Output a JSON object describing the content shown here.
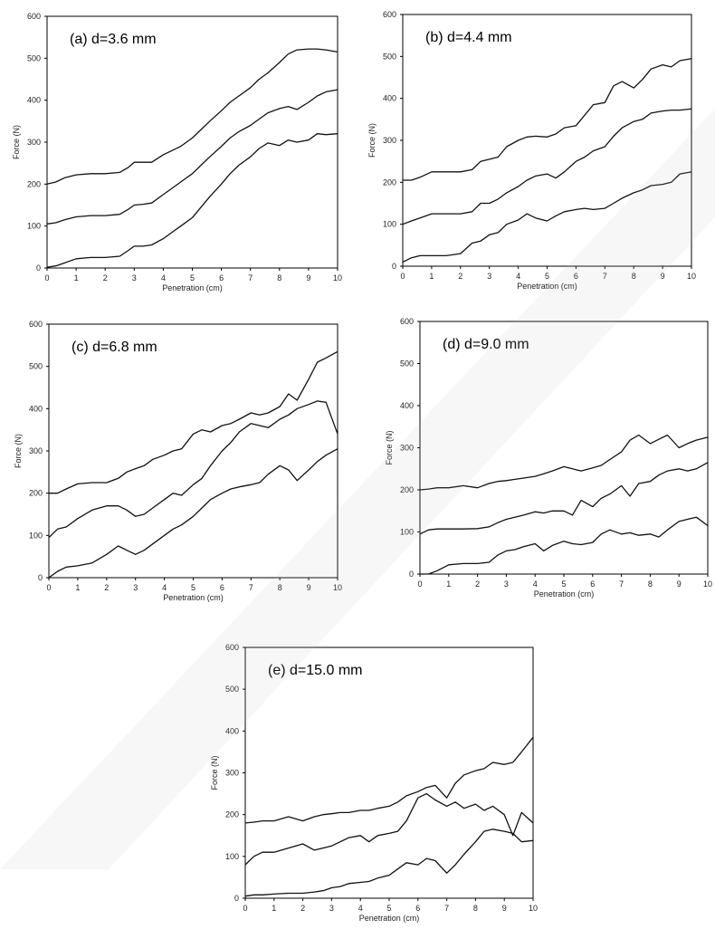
{
  "chart_data": [
    {
      "type": "line",
      "title": "(a) d=3.6 mm",
      "xlabel": "Penetration (cm)",
      "ylabel": "Force (N)",
      "xlim": [
        0,
        10
      ],
      "ylim": [
        0,
        600
      ],
      "xticks": [
        "0",
        "1",
        "2",
        "3",
        "4",
        "5",
        "6",
        "7",
        "8",
        "9",
        "10"
      ],
      "yticks": [
        "0",
        "100",
        "200",
        "300",
        "400",
        "500",
        "600"
      ],
      "series": [
        {
          "x": [
            0,
            0.3,
            0.6,
            1,
            1.5,
            2,
            2.5,
            2.8,
            3,
            3.3,
            3.6,
            4,
            4.3,
            4.6,
            5,
            5.3,
            5.6,
            6,
            6.3,
            6.6,
            7,
            7.3,
            7.6,
            8,
            8.3,
            8.6,
            9,
            9.3,
            9.6,
            10
          ],
          "values": [
            200,
            205,
            215,
            222,
            225,
            225,
            228,
            240,
            252,
            252,
            252,
            270,
            280,
            290,
            310,
            330,
            350,
            375,
            395,
            410,
            430,
            450,
            465,
            490,
            510,
            520,
            522,
            522,
            520,
            515
          ]
        },
        {
          "x": [
            0,
            0.3,
            0.6,
            1,
            1.5,
            2,
            2.5,
            2.8,
            3,
            3.3,
            3.6,
            4,
            4.3,
            4.6,
            5,
            5.3,
            5.6,
            6,
            6.3,
            6.6,
            7,
            7.3,
            7.6,
            8,
            8.3,
            8.6,
            9,
            9.3,
            9.6,
            10
          ],
          "values": [
            105,
            108,
            115,
            122,
            125,
            125,
            128,
            140,
            150,
            152,
            155,
            175,
            190,
            205,
            225,
            245,
            265,
            290,
            310,
            325,
            340,
            355,
            370,
            380,
            385,
            378,
            395,
            410,
            420,
            425
          ]
        },
        {
          "x": [
            0,
            0.3,
            0.6,
            1,
            1.5,
            2,
            2.5,
            2.8,
            3,
            3.3,
            3.6,
            4,
            4.3,
            4.6,
            5,
            5.3,
            5.6,
            6,
            6.3,
            6.6,
            7,
            7.3,
            7.6,
            8,
            8.3,
            8.6,
            9,
            9.3,
            9.6,
            10
          ],
          "values": [
            2,
            5,
            12,
            22,
            25,
            25,
            28,
            42,
            52,
            52,
            55,
            70,
            85,
            100,
            120,
            145,
            170,
            200,
            225,
            245,
            265,
            285,
            298,
            292,
            305,
            300,
            305,
            320,
            318,
            320
          ]
        }
      ]
    },
    {
      "type": "line",
      "title": "(b) d=4.4 mm",
      "xlabel": "Penetration (cm)",
      "ylabel": "Force (N)",
      "xlim": [
        0,
        10
      ],
      "ylim": [
        0,
        600
      ],
      "xticks": [
        "0",
        "1",
        "2",
        "3",
        "4",
        "5",
        "6",
        "7",
        "8",
        "9",
        "10"
      ],
      "yticks": [
        "0",
        "100",
        "200",
        "300",
        "400",
        "500",
        "600"
      ],
      "series": [
        {
          "x": [
            0,
            0.3,
            0.6,
            1,
            1.5,
            2,
            2.4,
            2.7,
            3,
            3.3,
            3.6,
            4,
            4.3,
            4.6,
            5,
            5.3,
            5.6,
            6,
            6.3,
            6.6,
            7,
            7.3,
            7.6,
            8,
            8.3,
            8.6,
            9,
            9.3,
            9.6,
            10
          ],
          "values": [
            205,
            205,
            212,
            225,
            225,
            225,
            230,
            250,
            255,
            260,
            285,
            300,
            308,
            310,
            308,
            315,
            330,
            335,
            360,
            385,
            390,
            430,
            440,
            425,
            445,
            470,
            480,
            475,
            490,
            495
          ]
        },
        {
          "x": [
            0,
            0.3,
            0.6,
            1,
            1.5,
            2,
            2.4,
            2.7,
            3,
            3.3,
            3.6,
            4,
            4.3,
            4.6,
            5,
            5.3,
            5.6,
            6,
            6.3,
            6.6,
            7,
            7.3,
            7.6,
            8,
            8.3,
            8.6,
            9,
            9.3,
            9.6,
            10
          ],
          "values": [
            100,
            108,
            115,
            125,
            125,
            125,
            130,
            150,
            150,
            160,
            175,
            190,
            205,
            215,
            220,
            210,
            225,
            250,
            260,
            275,
            285,
            310,
            330,
            345,
            350,
            365,
            370,
            372,
            372,
            375
          ]
        },
        {
          "x": [
            0,
            0.3,
            0.6,
            1,
            1.5,
            2,
            2.4,
            2.7,
            3,
            3.3,
            3.6,
            4,
            4.3,
            4.6,
            5,
            5.3,
            5.6,
            6,
            6.3,
            6.6,
            7,
            7.3,
            7.6,
            8,
            8.3,
            8.6,
            9,
            9.3,
            9.6,
            10
          ],
          "values": [
            10,
            20,
            25,
            25,
            25,
            30,
            55,
            60,
            75,
            80,
            100,
            110,
            125,
            115,
            108,
            120,
            130,
            135,
            138,
            135,
            138,
            150,
            162,
            175,
            182,
            192,
            195,
            200,
            220,
            225
          ]
        }
      ]
    },
    {
      "type": "line",
      "title": "(c) d=6.8 mm",
      "xlabel": "Penetration (cm)",
      "ylabel": "Force (N)",
      "xlim": [
        0,
        10
      ],
      "ylim": [
        0,
        600
      ],
      "xticks": [
        "0",
        "1",
        "2",
        "3",
        "4",
        "5",
        "6",
        "7",
        "8",
        "9",
        "10"
      ],
      "yticks": [
        "0",
        "100",
        "200",
        "300",
        "400",
        "500",
        "600"
      ],
      "series": [
        {
          "x": [
            0,
            0.3,
            0.6,
            1,
            1.5,
            2,
            2.4,
            2.7,
            3,
            3.3,
            3.6,
            4,
            4.3,
            4.6,
            5,
            5.3,
            5.6,
            6,
            6.3,
            6.6,
            7,
            7.3,
            7.6,
            8,
            8.3,
            8.6,
            9,
            9.3,
            9.6,
            10
          ],
          "values": [
            200,
            200,
            210,
            222,
            225,
            225,
            235,
            250,
            258,
            265,
            280,
            290,
            300,
            305,
            340,
            350,
            345,
            360,
            365,
            375,
            390,
            385,
            390,
            405,
            435,
            420,
            470,
            510,
            520,
            535
          ]
        },
        {
          "x": [
            0,
            0.3,
            0.6,
            1,
            1.5,
            2,
            2.4,
            2.7,
            3,
            3.3,
            3.6,
            4,
            4.3,
            4.6,
            5,
            5.3,
            5.6,
            6,
            6.3,
            6.6,
            7,
            7.3,
            7.6,
            8,
            8.3,
            8.6,
            9,
            9.3,
            9.6,
            10
          ],
          "values": [
            95,
            115,
            120,
            140,
            160,
            170,
            170,
            160,
            145,
            150,
            165,
            185,
            200,
            195,
            220,
            235,
            265,
            300,
            320,
            345,
            365,
            360,
            355,
            375,
            385,
            400,
            410,
            418,
            415,
            340
          ]
        },
        {
          "x": [
            0,
            0.3,
            0.6,
            1,
            1.5,
            2,
            2.4,
            2.7,
            3,
            3.3,
            3.6,
            4,
            4.3,
            4.6,
            5,
            5.3,
            5.6,
            6,
            6.3,
            6.6,
            7,
            7.3,
            7.6,
            8,
            8.3,
            8.6,
            9,
            9.3,
            9.6,
            10
          ],
          "values": [
            0,
            15,
            25,
            28,
            35,
            55,
            75,
            65,
            55,
            65,
            80,
            100,
            115,
            125,
            145,
            165,
            185,
            200,
            210,
            215,
            220,
            225,
            245,
            265,
            255,
            230,
            255,
            275,
            290,
            305
          ]
        }
      ]
    },
    {
      "type": "line",
      "title": "(d) d=9.0 mm",
      "xlabel": "Penetration (cm)",
      "ylabel": "Force (N)",
      "xlim": [
        0,
        10
      ],
      "ylim": [
        0,
        600
      ],
      "xticks": [
        "0",
        "1",
        "2",
        "3",
        "4",
        "5",
        "6",
        "7",
        "8",
        "9",
        "10"
      ],
      "yticks": [
        "0",
        "100",
        "200",
        "300",
        "400",
        "500",
        "600"
      ],
      "series": [
        {
          "x": [
            0,
            0.3,
            0.6,
            1,
            1.5,
            2,
            2.4,
            2.7,
            3,
            3.3,
            3.6,
            4,
            4.3,
            4.6,
            5,
            5.3,
            5.6,
            6,
            6.3,
            6.6,
            7,
            7.3,
            7.6,
            8,
            8.3,
            8.6,
            9,
            9.3,
            9.6,
            10
          ],
          "values": [
            200,
            202,
            205,
            205,
            210,
            205,
            215,
            220,
            222,
            225,
            228,
            232,
            238,
            245,
            255,
            250,
            245,
            252,
            258,
            272,
            290,
            318,
            330,
            310,
            320,
            330,
            300,
            310,
            318,
            325
          ]
        },
        {
          "x": [
            0,
            0.3,
            0.6,
            1,
            1.5,
            2,
            2.4,
            2.7,
            3,
            3.3,
            3.6,
            4,
            4.3,
            4.6,
            5,
            5.3,
            5.6,
            6,
            6.3,
            6.6,
            7,
            7.3,
            7.6,
            8,
            8.3,
            8.6,
            9,
            9.3,
            9.6,
            10
          ],
          "values": [
            95,
            105,
            107,
            107,
            107,
            108,
            112,
            122,
            130,
            135,
            140,
            148,
            145,
            150,
            150,
            140,
            175,
            160,
            180,
            190,
            210,
            185,
            215,
            220,
            235,
            245,
            250,
            245,
            250,
            265
          ]
        },
        {
          "x": [
            0,
            0.3,
            0.6,
            1,
            1.5,
            2,
            2.4,
            2.7,
            3,
            3.3,
            3.6,
            4,
            4.3,
            4.6,
            5,
            5.3,
            5.6,
            6,
            6.3,
            6.6,
            7,
            7.3,
            7.6,
            8,
            8.3,
            8.6,
            9,
            9.3,
            9.6,
            10
          ],
          "values": [
            0,
            0,
            8,
            22,
            25,
            25,
            28,
            45,
            55,
            58,
            65,
            72,
            55,
            68,
            78,
            72,
            70,
            75,
            95,
            105,
            95,
            98,
            92,
            95,
            88,
            105,
            125,
            130,
            135,
            115
          ]
        }
      ]
    },
    {
      "type": "line",
      "title": "(e) d=15.0 mm",
      "xlabel": "Penetration (cm)",
      "ylabel": "Force (N)",
      "xlim": [
        0,
        10
      ],
      "ylim": [
        0,
        600
      ],
      "xticks": [
        "0",
        "1",
        "2",
        "3",
        "4",
        "5",
        "6",
        "7",
        "8",
        "9",
        "10"
      ],
      "yticks": [
        "0",
        "100",
        "200",
        "300",
        "400",
        "500",
        "600"
      ],
      "series": [
        {
          "x": [
            0,
            0.3,
            0.6,
            1,
            1.5,
            2,
            2.4,
            2.7,
            3,
            3.3,
            3.6,
            4,
            4.3,
            4.6,
            5,
            5.3,
            5.6,
            6,
            6.3,
            6.6,
            7,
            7.3,
            7.6,
            8,
            8.3,
            8.6,
            9,
            9.3,
            9.6,
            10
          ],
          "values": [
            180,
            182,
            185,
            185,
            195,
            185,
            195,
            200,
            202,
            205,
            205,
            210,
            210,
            215,
            220,
            230,
            245,
            255,
            265,
            270,
            240,
            275,
            295,
            305,
            310,
            325,
            320,
            325,
            350,
            385
          ]
        },
        {
          "x": [
            0,
            0.3,
            0.6,
            1,
            1.5,
            2,
            2.4,
            2.7,
            3,
            3.3,
            3.6,
            4,
            4.3,
            4.6,
            5,
            5.3,
            5.6,
            6,
            6.3,
            6.6,
            7,
            7.3,
            7.6,
            8,
            8.3,
            8.6,
            9,
            9.3,
            9.6,
            10
          ],
          "values": [
            80,
            100,
            110,
            110,
            120,
            130,
            115,
            120,
            125,
            135,
            145,
            150,
            135,
            150,
            155,
            160,
            185,
            240,
            250,
            235,
            220,
            230,
            215,
            225,
            210,
            220,
            200,
            150,
            205,
            180
          ]
        },
        {
          "x": [
            0,
            0.3,
            0.6,
            1,
            1.5,
            2,
            2.4,
            2.7,
            3,
            3.3,
            3.6,
            4,
            4.3,
            4.6,
            5,
            5.3,
            5.6,
            6,
            6.3,
            6.6,
            7,
            7.3,
            7.6,
            8,
            8.3,
            8.6,
            9,
            9.3,
            9.6,
            10
          ],
          "values": [
            5,
            8,
            8,
            10,
            12,
            12,
            15,
            18,
            25,
            28,
            35,
            38,
            40,
            48,
            55,
            70,
            85,
            80,
            95,
            90,
            60,
            80,
            105,
            135,
            160,
            165,
            160,
            155,
            135,
            138
          ]
        }
      ]
    }
  ]
}
